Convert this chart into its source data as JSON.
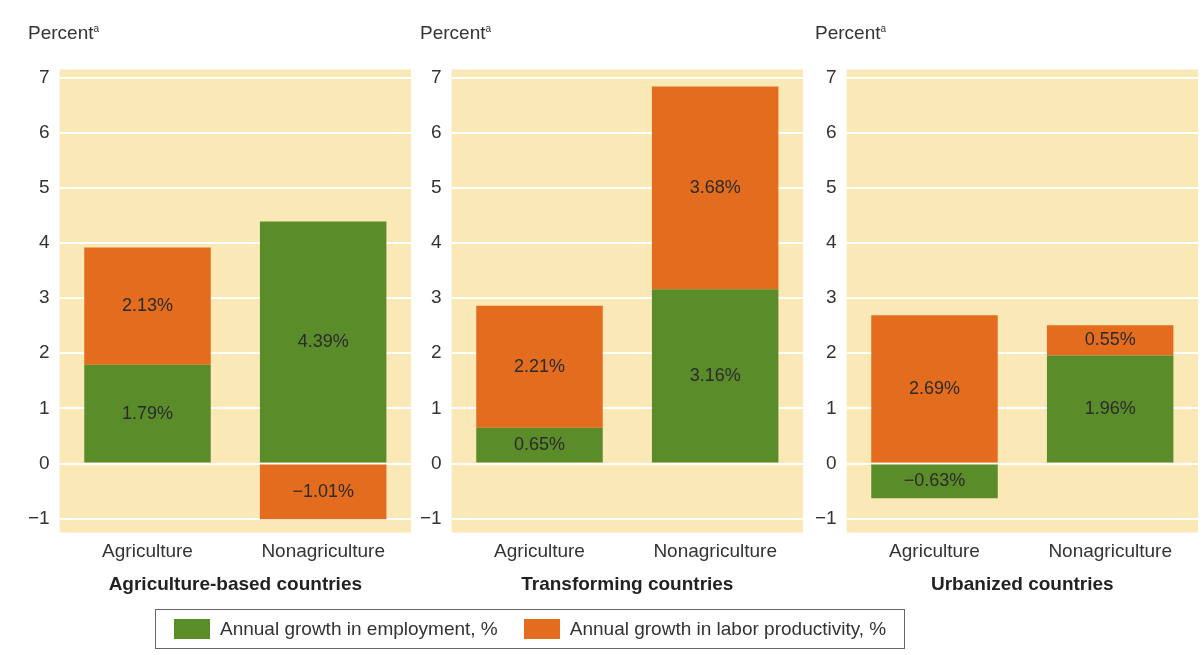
{
  "chart_data": [
    {
      "type": "bar",
      "stacked": true,
      "ylabel": "Percent$^{a}$",
      "xlabel": "Agriculture-based countries",
      "categories": [
        "Agriculture",
        "Nonagriculture"
      ],
      "ylim": [
        -1.25,
        7.15
      ],
      "yticks": [
        -1,
        0,
        1,
        2,
        3,
        4,
        5,
        6,
        7
      ],
      "grid": "y",
      "legend": "bottom",
      "series": [
        {
          "name": "Annual growth in employment, %",
          "color": "#5b8c2a",
          "values": [
            1.79,
            4.39
          ],
          "value_labels": [
            "1.79%",
            "4.39%"
          ]
        },
        {
          "name": "Annual growth in labor productivity, %",
          "color": "#e36c1e",
          "values": [
            2.13,
            -1.01
          ],
          "value_labels": [
            "2.13%",
            "−1.01%"
          ]
        }
      ]
    },
    {
      "type": "bar",
      "stacked": true,
      "ylabel": "Percent$^{a}$",
      "xlabel": "Transforming countries",
      "categories": [
        "Agriculture",
        "Nonagriculture"
      ],
      "ylim": [
        -1.25,
        7.15
      ],
      "yticks": [
        -1,
        0,
        1,
        2,
        3,
        4,
        5,
        6,
        7
      ],
      "grid": "y",
      "series": [
        {
          "color": "#5b8c2a",
          "values": [
            0.65,
            3.16
          ],
          "value_labels": [
            "0.65%",
            "3.16%"
          ]
        },
        {
          "color": "#e36c1e",
          "values": [
            2.21,
            3.68
          ],
          "value_labels": [
            "2.21%",
            "3.68%"
          ]
        }
      ]
    },
    {
      "type": "bar",
      "stacked": true,
      "ylabel": "Percent$^{a}$",
      "xlabel": "Urbanized countries",
      "categories": [
        "Agriculture",
        "Nonagriculture"
      ],
      "ylim": [
        -1.25,
        7.15
      ],
      "yticks": [
        -1,
        0,
        1,
        2,
        3,
        4,
        5,
        6,
        7
      ],
      "grid": "y",
      "series": [
        {
          "color": "#5b8c2a",
          "values": [
            -0.63,
            1.96
          ],
          "value_labels": [
            "−0.63%",
            "1.96%"
          ]
        },
        {
          "color": "#e36c1e",
          "values": [
            2.69,
            0.55
          ],
          "value_labels": [
            "2.69%",
            "0.55%"
          ]
        }
      ]
    }
  ]
}
